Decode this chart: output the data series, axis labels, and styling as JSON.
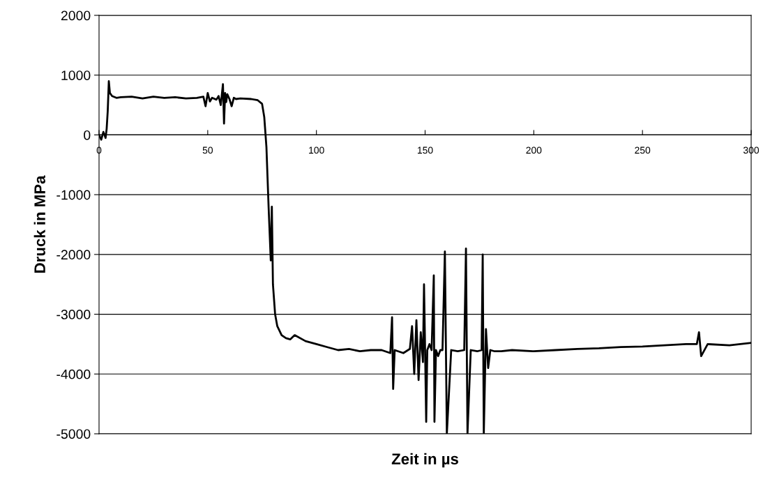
{
  "chart_data": {
    "type": "line",
    "xlabel": "Zeit in µs",
    "ylabel": "Druck in MPa",
    "xlim": [
      0,
      300
    ],
    "xticks": [
      0,
      50,
      100,
      150,
      200,
      250,
      300
    ],
    "ylim": [
      -5000,
      2000
    ],
    "yticks": [
      2000,
      1000,
      0,
      -1000,
      -2000,
      -3000,
      -4000,
      -5000
    ],
    "grid": "y",
    "legend": false,
    "marker": "none",
    "line_style": "solid",
    "series": [
      {
        "color": "#000000",
        "x": [
          0,
          1,
          2,
          3,
          3.5,
          4,
          4.5,
          5,
          6,
          8,
          10,
          15,
          20,
          25,
          30,
          35,
          40,
          45,
          48,
          49,
          50,
          51,
          52,
          54,
          55,
          56,
          57,
          57.5,
          58,
          58.5,
          59,
          60,
          61,
          62,
          63,
          65,
          70,
          73,
          75,
          76,
          77,
          78,
          79,
          79.5,
          80,
          81,
          82,
          84,
          86,
          88,
          90,
          95,
          100,
          105,
          110,
          115,
          120,
          125,
          130,
          134,
          134.8,
          135.3,
          136,
          140,
          143,
          144,
          145,
          146,
          147,
          148,
          149,
          149.5,
          150,
          150.5,
          151,
          152,
          153,
          154,
          154.3,
          155,
          156,
          157,
          158,
          159.1,
          160,
          162,
          165,
          168,
          168.8,
          169.5,
          171,
          174,
          176,
          176.5,
          177,
          178,
          179,
          180,
          182,
          185,
          190,
          200,
          210,
          220,
          230,
          240,
          250,
          260,
          270,
          275,
          276,
          277,
          280,
          290,
          300
        ],
        "values": [
          0,
          -80,
          50,
          -50,
          100,
          400,
          900,
          700,
          650,
          620,
          630,
          640,
          610,
          640,
          620,
          630,
          610,
          620,
          640,
          480,
          700,
          560,
          620,
          590,
          650,
          500,
          850,
          190,
          700,
          550,
          680,
          600,
          480,
          620,
          600,
          610,
          600,
          580,
          520,
          300,
          -200,
          -1200,
          -2100,
          -1200,
          -2500,
          -3000,
          -3200,
          -3350,
          -3400,
          -3420,
          -3350,
          -3450,
          -3500,
          -3550,
          -3600,
          -3580,
          -3620,
          -3600,
          -3600,
          -3650,
          -3050,
          -4250,
          -3600,
          -3650,
          -3580,
          -3200,
          -4000,
          -3100,
          -4100,
          -3300,
          -3800,
          -2500,
          -3600,
          -4800,
          -3600,
          -3500,
          -3600,
          -2350,
          -4800,
          -3600,
          -3700,
          -3600,
          -3600,
          -1950,
          -5000,
          -3600,
          -3620,
          -3600,
          -1900,
          -5000,
          -3600,
          -3620,
          -3600,
          -2000,
          -5000,
          -3250,
          -3900,
          -3600,
          -3620,
          -3620,
          -3600,
          -3620,
          -3600,
          -3580,
          -3570,
          -3550,
          -3540,
          -3520,
          -3500,
          -3500,
          -3300,
          -3700,
          -3500,
          -3520,
          -3480
        ]
      }
    ]
  }
}
